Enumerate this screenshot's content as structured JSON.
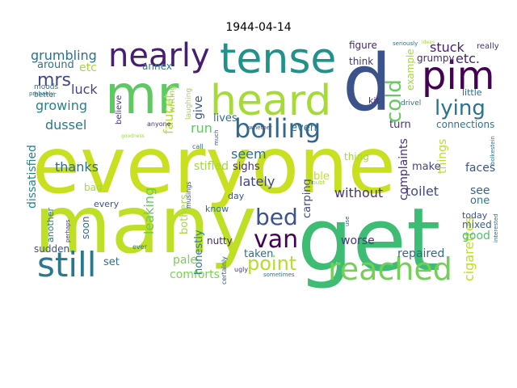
{
  "chart_data": {
    "type": "wordcloud",
    "title": "1944-04-14",
    "background": "#ffffff",
    "colormap": "viridis",
    "words": [
      {
        "text": "everyone",
        "color": "#c8e020"
      },
      {
        "text": "many",
        "color": "#bddf26"
      },
      {
        "text": "get",
        "color": "#3dbc74"
      },
      {
        "text": "d",
        "color": "#3b528b"
      },
      {
        "text": "mr",
        "color": "#5ec962"
      },
      {
        "text": "heard",
        "color": "#a5db36"
      },
      {
        "text": "tense",
        "color": "#21918c"
      },
      {
        "text": "pim",
        "color": "#440154"
      },
      {
        "text": "still",
        "color": "#2a788e"
      },
      {
        "text": "reached",
        "color": "#73d056"
      },
      {
        "text": "boiling",
        "color": "#31688e"
      },
      {
        "text": "nearly",
        "color": "#481f70"
      },
      {
        "text": "lying",
        "color": "#2c728e"
      },
      {
        "text": "point",
        "color": "#b5de2b"
      },
      {
        "text": "bed",
        "color": "#3b528b"
      },
      {
        "text": "van",
        "color": "#440154"
      },
      {
        "text": "cold",
        "color": "#65cb5e"
      },
      {
        "text": "mrs",
        "color": "#3f4889"
      },
      {
        "text": "grumbling",
        "color": "#2c728e"
      },
      {
        "text": "etc",
        "color": "#a2da37"
      },
      {
        "text": "etc.",
        "color": "#482173"
      },
      {
        "text": "stuck",
        "color": "#481f70"
      },
      {
        "text": "luck",
        "color": "#414487"
      },
      {
        "text": "growing",
        "color": "#25838e"
      },
      {
        "text": "dussel",
        "color": "#2a788e"
      },
      {
        "text": "faucet",
        "color": "#b5de2b"
      },
      {
        "text": "give",
        "color": "#3b528b"
      },
      {
        "text": "run",
        "color": "#5ec962"
      },
      {
        "text": "seem",
        "color": "#2c728e"
      },
      {
        "text": "lately",
        "color": "#414487"
      },
      {
        "text": "thanks",
        "color": "#31688e"
      },
      {
        "text": "stifled",
        "color": "#a2da37"
      },
      {
        "text": "sighs",
        "color": "#46327e"
      },
      {
        "text": "without",
        "color": "#46327e"
      },
      {
        "text": "toilet",
        "color": "#3e4a89"
      },
      {
        "text": "leaking",
        "color": "#65cb5e"
      },
      {
        "text": "pale",
        "color": "#7ad151"
      },
      {
        "text": "comforts",
        "color": "#7ad151"
      },
      {
        "text": "taken",
        "color": "#2d708e"
      },
      {
        "text": "repaired",
        "color": "#31688e"
      },
      {
        "text": "worse",
        "color": "#443a83"
      },
      {
        "text": "cigarettes",
        "color": "#bddf26"
      },
      {
        "text": "things",
        "color": "#b8de29"
      },
      {
        "text": "faces",
        "color": "#3b528b"
      },
      {
        "text": "connections",
        "color": "#2a788e"
      },
      {
        "text": "complaints",
        "color": "#472d7b"
      },
      {
        "text": "dissatisfied",
        "color": "#25838e"
      },
      {
        "text": "carping",
        "color": "#3e4a89"
      },
      {
        "text": "honestly",
        "color": "#287d8e"
      },
      {
        "text": "bothers",
        "color": "#a5db36"
      },
      {
        "text": "good",
        "color": "#4ac16d"
      },
      {
        "text": "see",
        "color": "#31688e"
      },
      {
        "text": "one",
        "color": "#2a788e"
      },
      {
        "text": "around",
        "color": "#2c728e"
      },
      {
        "text": "annex",
        "color": "#2a788e"
      },
      {
        "text": "think",
        "color": "#46327e"
      },
      {
        "text": "figure",
        "color": "#482878"
      },
      {
        "text": "example",
        "color": "#a5db36"
      },
      {
        "text": "grumpy",
        "color": "#482878"
      },
      {
        "text": "lives",
        "color": "#2d708e"
      },
      {
        "text": "even",
        "color": "#2c728e"
      },
      {
        "text": "turn",
        "color": "#46327e"
      },
      {
        "text": "make",
        "color": "#414487"
      },
      {
        "text": "able",
        "color": "#c2df23"
      },
      {
        "text": "thing",
        "color": "#a2da37"
      },
      {
        "text": "mixed",
        "color": "#31688e"
      },
      {
        "text": "today",
        "color": "#3b528b"
      },
      {
        "text": "soon",
        "color": "#31688e"
      },
      {
        "text": "sudden",
        "color": "#3b528b"
      },
      {
        "text": "another",
        "color": "#2c728e"
      },
      {
        "text": "bad",
        "color": "#a2da37"
      },
      {
        "text": "set",
        "color": "#2c728e"
      },
      {
        "text": "nutty",
        "color": "#482475"
      },
      {
        "text": "know",
        "color": "#2c728e"
      },
      {
        "text": "day",
        "color": "#3b528b"
      },
      {
        "text": "every",
        "color": "#3b528b"
      },
      {
        "text": "moods",
        "color": "#2c728e"
      },
      {
        "text": "better",
        "color": "#2c728e"
      },
      {
        "text": "probably",
        "color": "#2c728e"
      },
      {
        "text": "believe",
        "color": "#46327e"
      },
      {
        "text": "writing",
        "color": "#a2da37"
      },
      {
        "text": "laughing",
        "color": "#a2da37"
      },
      {
        "text": "kit",
        "color": "#46327e"
      },
      {
        "text": "drivel",
        "color": "#2c728e"
      },
      {
        "text": "little",
        "color": "#31688e"
      },
      {
        "text": "really",
        "color": "#46327e"
      },
      {
        "text": "seriously",
        "color": "#2c728e"
      },
      {
        "text": "call",
        "color": "#2c728e"
      },
      {
        "text": "much",
        "color": "#3b528b"
      },
      {
        "text": "whether",
        "color": "#3b528b"
      },
      {
        "text": "anyone",
        "color": "#46327e"
      },
      {
        "text": "bolkestein",
        "color": "#2c728e"
      },
      {
        "text": "interested",
        "color": "#31688e"
      },
      {
        "text": "ugly",
        "color": "#46327e"
      },
      {
        "text": "sometimes",
        "color": "#2c728e"
      },
      {
        "text": "certainly",
        "color": "#3b528b"
      },
      {
        "text": "musings",
        "color": "#3b528b"
      },
      {
        "text": "ever",
        "color": "#2c728e"
      },
      {
        "text": "doubt",
        "color": "#a2da37"
      },
      {
        "text": "use",
        "color": "#3b528b"
      },
      {
        "text": "perhaps",
        "color": "#46327e"
      },
      {
        "text": "goodness",
        "color": "#a2da37"
      },
      {
        "text": "ideas",
        "color": "#a2da37"
      }
    ]
  }
}
